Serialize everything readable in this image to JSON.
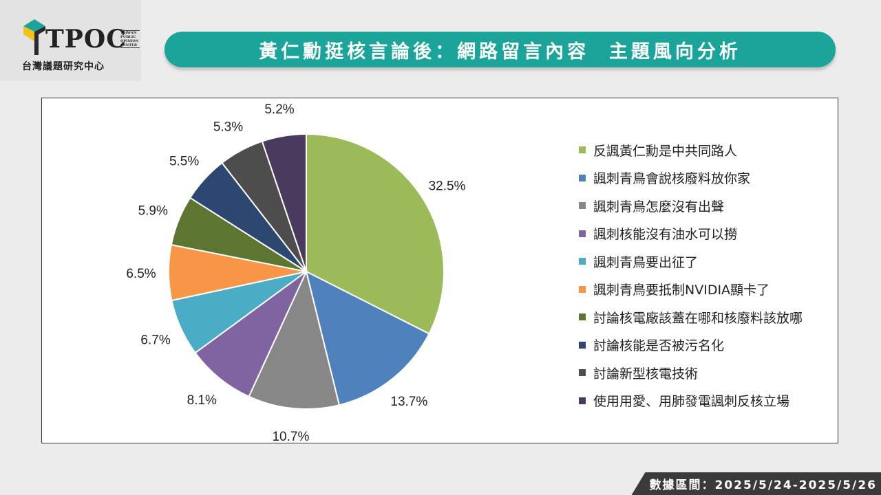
{
  "brand": {
    "logo_text": "TPOC",
    "logo_side": [
      "TAIWAN",
      "PUBLIC",
      "OPINION",
      "CENTER"
    ],
    "subtitle": "台灣議題研究中心"
  },
  "header": {
    "title": "黃仁勳挺核言論後：網路留言內容  主題風向分析"
  },
  "footer": {
    "date_range": "數據區間：2025/5/24-2025/5/26"
  },
  "chart_data": {
    "type": "pie",
    "title": "",
    "legend_position": "right",
    "unit": "%",
    "slices": [
      {
        "label": "反諷黃仁勳是中共同路人",
        "value": 32.5,
        "value_label": "32.5%",
        "color": "#9bbb59"
      },
      {
        "label": "諷刺青鳥會說核廢料放你家",
        "value": 13.7,
        "value_label": "13.7%",
        "color": "#4f81bd"
      },
      {
        "label": "諷刺青鳥怎麼沒有出聲",
        "value": 10.7,
        "value_label": "10.7%",
        "color": "#878787"
      },
      {
        "label": "諷刺核能沒有油水可以撈",
        "value": 8.1,
        "value_label": "8.1%",
        "color": "#8064a2"
      },
      {
        "label": "諷刺青鳥要出征了",
        "value": 6.7,
        "value_label": "6.7%",
        "color": "#4bacc6"
      },
      {
        "label": "諷刺青鳥要抵制NVIDIA顯卡了",
        "value": 6.5,
        "value_label": "6.5%",
        "color": "#f79646"
      },
      {
        "label": "討論核電廠該蓋在哪和核廢料該放哪",
        "value": 5.9,
        "value_label": "5.9%",
        "color": "#5c7530"
      },
      {
        "label": "討論核能是否被污名化",
        "value": 5.5,
        "value_label": "5.5%",
        "color": "#2c4770"
      },
      {
        "label": "討論新型核電技術",
        "value": 5.3,
        "value_label": "5.3%",
        "color": "#4d4d4d"
      },
      {
        "label": "使用用愛、用肺發電諷刺反核立場",
        "value": 5.2,
        "value_label": "5.2%",
        "color": "#4a3a5e"
      }
    ]
  }
}
